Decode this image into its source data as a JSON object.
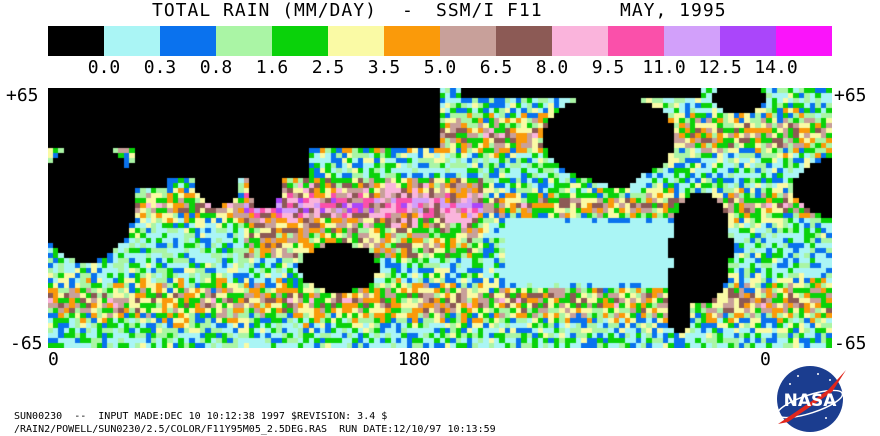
{
  "header": {
    "title": "TOTAL RAIN (MM/DAY)",
    "separator": "-",
    "sensor": "SSM/I F11",
    "date": "MAY, 1995"
  },
  "legend": {
    "colors": [
      "#000000",
      "#aaf5f5",
      "#0a72ee",
      "#aaf5a5",
      "#0ad20a",
      "#fafaa5",
      "#fa9a0a",
      "#c8a09a",
      "#8c5a55",
      "#fab4dc",
      "#fa50aa",
      "#d2a0fa",
      "#aa46fa",
      "#fa14fa"
    ],
    "labels": [
      "0.0",
      "0.3",
      "0.8",
      "1.6",
      "2.5",
      "3.5",
      "5.0",
      "6.5",
      "8.0",
      "9.5",
      "11.0",
      "12.5",
      "14.0"
    ]
  },
  "axes": {
    "lat_top": "+65",
    "lat_bottom": "-65",
    "lon_left": "0",
    "lon_center": "180",
    "lon_right": "0"
  },
  "footer": {
    "line1": "SUN00230  --  INPUT MADE:DEC 10 10:12:38 1997 $REVISION: 3.4 $",
    "line2": "/RAIN2/POWELL/SUN0230/2.5/COLOR/F11Y95M05_2.5DEG.RAS  RUN DATE:12/10/97 10:13:59"
  },
  "logo": {
    "text": "NASA",
    "icon": "nasa-meatball-icon"
  }
}
